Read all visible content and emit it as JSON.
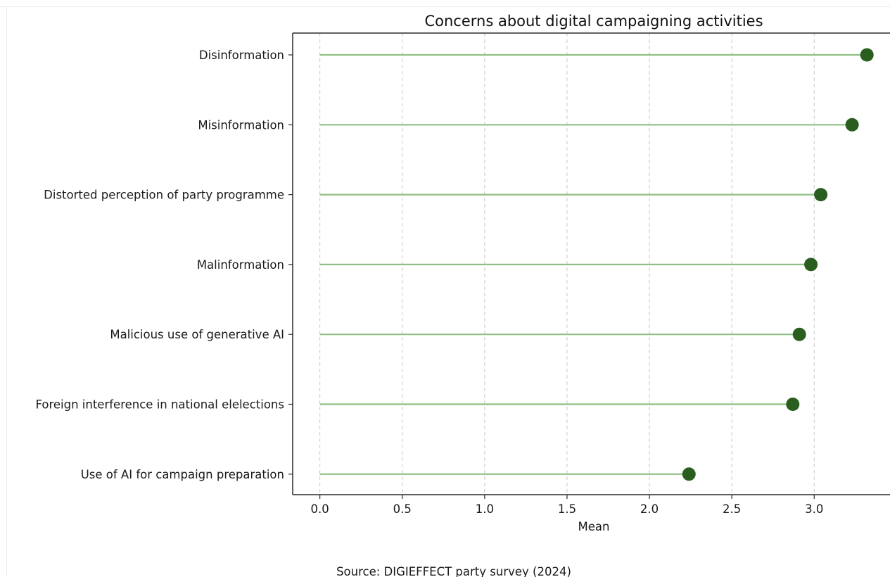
{
  "chart_data": {
    "type": "lollipop",
    "title": "Concerns about digital campaigning activities",
    "xlabel": "Mean",
    "ylabel": "",
    "xlim": [
      -0.165,
      3.46
    ],
    "xticks": [
      "0.0",
      "0.5",
      "1.0",
      "1.5",
      "2.0",
      "2.5",
      "3.0"
    ],
    "grid": "vertical dashed",
    "categories": [
      "Disinformation",
      "Misinformation",
      "Distorted perception of party programme",
      "Malinformation",
      "Malicious use of generative AI",
      "Foreign interference in national elelections",
      "Use of AI for campaign preparation"
    ],
    "values": [
      3.32,
      3.23,
      3.04,
      2.98,
      2.91,
      2.87,
      2.24
    ],
    "colors": {
      "marker": "#2a5e1e",
      "stem": "#8fbf84"
    }
  },
  "source": "Source: DIGIEFFECT party survey (2024)"
}
